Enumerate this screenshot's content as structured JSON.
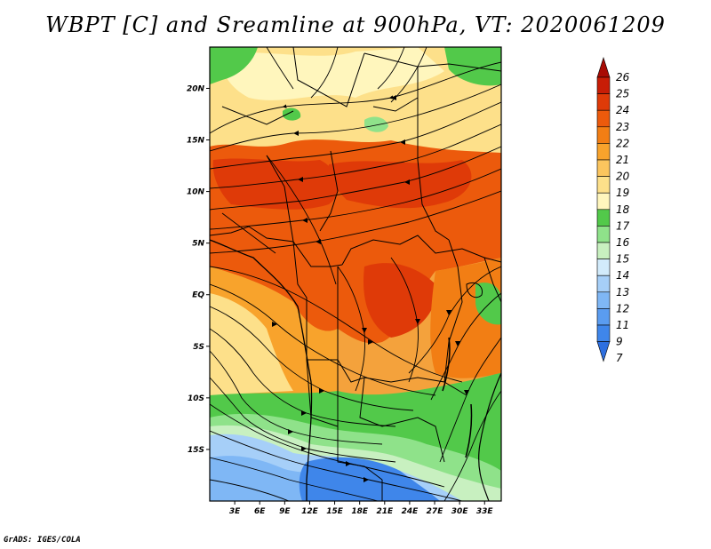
{
  "title": "WBPT [C] and Sreamline at 900hPa, VT: 2020061209",
  "footer": "GrADS: IGES/COLA",
  "map": {
    "lon_range": [
      0,
      35
    ],
    "lat_range": [
      -20,
      24
    ],
    "x_ticks": [
      "3E",
      "6E",
      "9E",
      "12E",
      "15E",
      "18E",
      "21E",
      "24E",
      "27E",
      "30E",
      "33E"
    ],
    "x_tick_values": [
      3,
      6,
      9,
      12,
      15,
      18,
      21,
      24,
      27,
      30,
      33
    ],
    "y_ticks": [
      "20N",
      "15N",
      "10N",
      "5N",
      "EQ",
      "5S",
      "10S",
      "15S"
    ],
    "y_tick_values": [
      20,
      15,
      10,
      5,
      0,
      -5,
      -10,
      -15
    ]
  },
  "colorbar": {
    "labels": [
      "7",
      "9",
      "11",
      "12",
      "13",
      "14",
      "15",
      "16",
      "17",
      "18",
      "19",
      "20",
      "21",
      "22",
      "23",
      "24",
      "25",
      "26"
    ],
    "colors": [
      "#2d6fe0",
      "#3f86ea",
      "#5a9cf0",
      "#7fb7f5",
      "#a6cff8",
      "#d2ebfb",
      "#c8f0c0",
      "#8fe28a",
      "#52c94a",
      "#fff6bd",
      "#fde08a",
      "#fbc55e",
      "#f8a32c",
      "#f27e14",
      "#ec5a0c",
      "#df3a08",
      "#c81d06",
      "#a80b04"
    ]
  }
}
